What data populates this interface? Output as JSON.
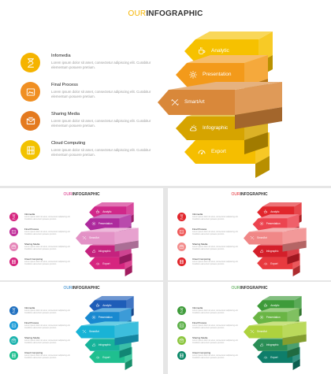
{
  "title": {
    "accent": "OUR",
    "main": "INFOGRAPHIC"
  },
  "items": [
    {
      "title": "Infomedia",
      "desc": "Lorem ipsum dolor sit amet, consectetur adipiscing elit. Curabitur elementum posuere pretium.",
      "icon": "hourglass-icon"
    },
    {
      "title": "Final Process",
      "desc": "Lorem ipsum dolor sit amet, consectetur adipiscing elit. Curabitur elementum posuere pretium.",
      "icon": "document-icon"
    },
    {
      "title": "Sharing Media",
      "desc": "Lorem ipsum dolor sit amet, consectetur adipiscing elit. Curabitur elementum posuere pretium.",
      "icon": "envelope-icon"
    },
    {
      "title": "Cloud Computing",
      "desc": "Lorem ipsum dolor sit amet, consectetur adipiscing elit. Curabitur elementum posuere pretium.",
      "icon": "grid-icon"
    }
  ],
  "arrows": [
    {
      "label": "Analytic",
      "icon": "cup-icon"
    },
    {
      "label": "Presentation",
      "icon": "gear-icon"
    },
    {
      "label": "SmartArt",
      "icon": "tools-icon"
    },
    {
      "label": "Infographic",
      "icon": "cloud-sun-icon"
    },
    {
      "label": "Export",
      "icon": "gauge-icon"
    }
  ],
  "themes": {
    "yellow": {
      "accent": "#F5B400",
      "circles": [
        "#F5B400",
        "#F08F22",
        "#E47A1F",
        "#F2C200"
      ],
      "arrows": [
        "#F6C100",
        "#F39A1A",
        "#D9883A",
        "#D6A400",
        "#F5BE00"
      ]
    },
    "pink": {
      "accent": "#D6257F",
      "circles": [
        "#D6257F",
        "#C02F9A",
        "#E585B8",
        "#D6257F"
      ],
      "arrows": [
        "#D0288A",
        "#AD2A9D",
        "#E392C6",
        "#C5227E",
        "#D6257F"
      ]
    },
    "red": {
      "accent": "#E1262C",
      "circles": [
        "#E1262C",
        "#EF5A5A",
        "#F28C8C",
        "#E1262C"
      ],
      "arrows": [
        "#E1262C",
        "#EC4450",
        "#F08787",
        "#D41F2A",
        "#E83A3F"
      ]
    },
    "blue": {
      "accent": "#1E7DC6",
      "circles": [
        "#1E6FBF",
        "#1C9CD8",
        "#1DB3AE",
        "#1FBF8F"
      ],
      "arrows": [
        "#1E5DB8",
        "#1989D0",
        "#19B3D6",
        "#17B39A",
        "#1FBF8F"
      ]
    },
    "green": {
      "accent": "#3E9B3A",
      "circles": [
        "#3E9B3A",
        "#5DB04A",
        "#8CC63F",
        "#0E8A6A"
      ],
      "arrows": [
        "#3E9B3A",
        "#6AB545",
        "#AED23E",
        "#2A8E56",
        "#0E7E6A"
      ]
    }
  }
}
